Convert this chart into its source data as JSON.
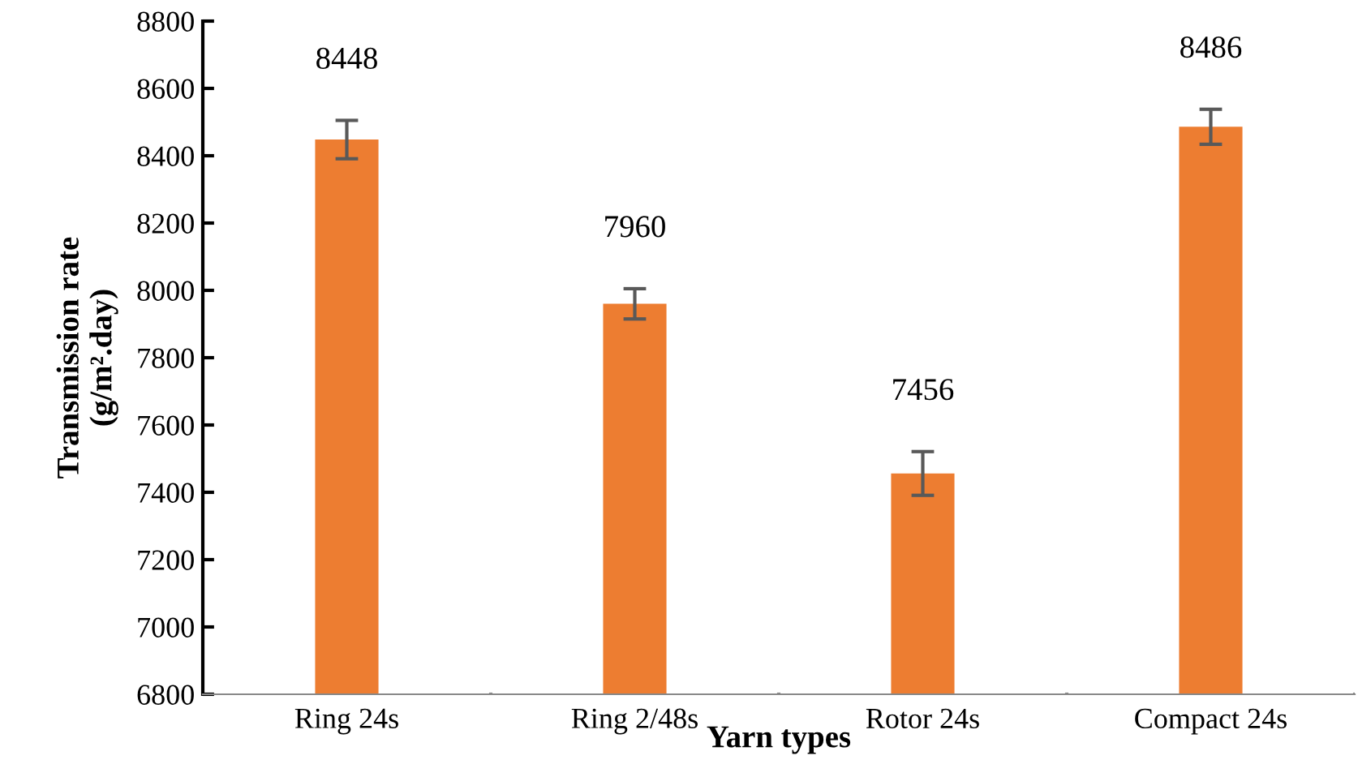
{
  "chart_data": {
    "type": "bar",
    "xlabel": "Yarn types",
    "ylabel": "Transmission rate\n(g/m².day)",
    "categories": [
      "Ring 24s",
      "Ring 2/48s",
      "Rotor 24s",
      "Compact 24s"
    ],
    "values": [
      8448,
      7960,
      7456,
      8486
    ],
    "color": "#ed7d31",
    "errors": [
      57,
      45,
      65,
      52
    ],
    "data_labels": true,
    "ylim": [
      6800,
      8800
    ],
    "yticks": [
      6800,
      7000,
      7200,
      7400,
      7600,
      7800,
      8000,
      8200,
      8400,
      8600,
      8800
    ],
    "grid": false,
    "legend": false
  }
}
